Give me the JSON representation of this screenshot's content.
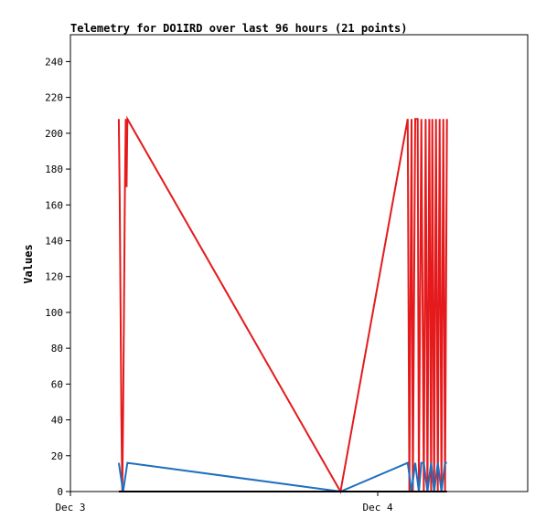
{
  "chart_data": {
    "type": "line",
    "title": "Telemetry for DO1IRD over last 96 hours (21 points)",
    "xlabel": "",
    "ylabel": "Values",
    "ylim": [
      0,
      255
    ],
    "yticks": [
      0,
      20,
      40,
      60,
      80,
      100,
      120,
      140,
      160,
      180,
      200,
      220,
      240
    ],
    "xtick_labels": [
      "Dec 3",
      "Dec 4"
    ],
    "xlim": [
      0,
      1.488
    ],
    "xtick_positions": [
      0,
      1
    ],
    "grid": false,
    "legend": "none",
    "series": [
      {
        "color": "#e41a1c",
        "x": [
          0.1575,
          0.1603,
          0.1631,
          0.1659,
          0.1687,
          0.1715,
          0.1743,
          0.1771,
          0.1799,
          0.1827,
          0.1855,
          0.8789,
          1.0976,
          1.1028,
          1.1101,
          1.1141,
          1.122,
          1.13,
          1.1339,
          1.1419,
          1.1498,
          1.1558,
          1.1617,
          1.1677,
          1.1736,
          1.1776,
          1.1835,
          1.1895,
          1.1954,
          1.2013,
          1.2073,
          1.2132,
          1.2191,
          1.2251
        ],
        "y": [
          208,
          164,
          104,
          42,
          0,
          42,
          104,
          164,
          208,
          170,
          208,
          0,
          208,
          0,
          208,
          0,
          208,
          208,
          0,
          208,
          0,
          208,
          0,
          208,
          0,
          208,
          0,
          208,
          0,
          208,
          0,
          208,
          0,
          208
        ]
      },
      {
        "color": "#1f6fbf",
        "x": [
          0.1575,
          0.1715,
          0.1855,
          0.8789,
          1.0976,
          1.1101,
          1.122,
          1.1339,
          1.1419,
          1.1498,
          1.1617,
          1.1736,
          1.1835,
          1.1954,
          1.2073,
          1.2191,
          1.2251
        ],
        "y": [
          16,
          0,
          16,
          0,
          16,
          0,
          16,
          0,
          16,
          16,
          0,
          16,
          0,
          16,
          0,
          16,
          16
        ]
      },
      {
        "color": "#000000",
        "x": [
          0.1575,
          1.2251
        ],
        "y": [
          0,
          0
        ]
      }
    ]
  }
}
